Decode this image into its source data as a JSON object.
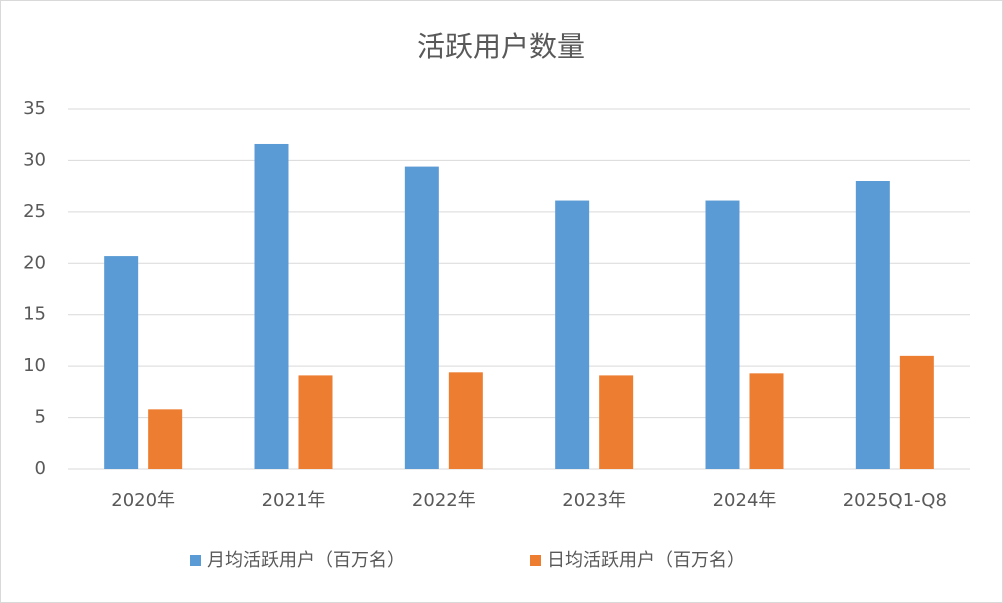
{
  "chart_data": {
    "type": "bar",
    "title": "活跃用户数量",
    "categories": [
      "2020年",
      "2021年",
      "2022年",
      "2023年",
      "2024年",
      "2025Q1-Q8"
    ],
    "series": [
      {
        "name": "月均活跃用户（百万名）",
        "color": "#5b9bd5",
        "values": [
          20.7,
          31.6,
          29.4,
          26.1,
          26.1,
          28.0
        ]
      },
      {
        "name": "日均活跃用户（百万名）",
        "color": "#ed7d31",
        "values": [
          5.8,
          9.1,
          9.4,
          9.1,
          9.3,
          11.0
        ]
      }
    ],
    "ylim": [
      0,
      35
    ],
    "yticks": [
      0,
      5,
      10,
      15,
      20,
      25,
      30,
      35
    ],
    "grid": true,
    "legend": "bottom"
  }
}
